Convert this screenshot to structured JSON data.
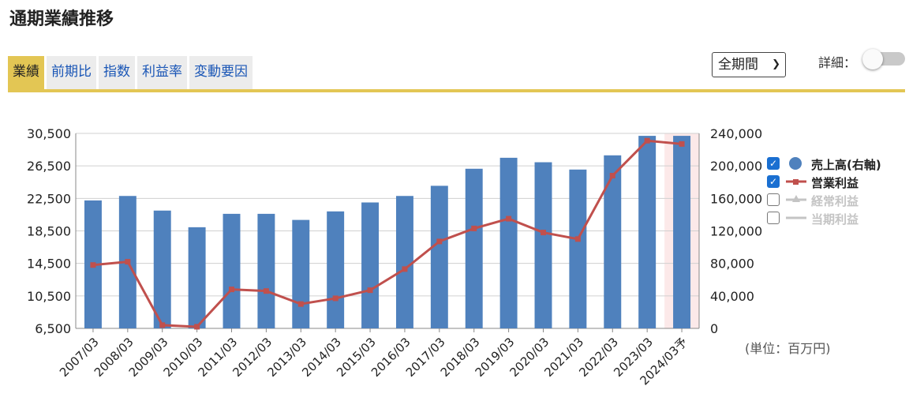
{
  "header": {
    "title": "通期業績推移"
  },
  "tabs": [
    {
      "label": "業績",
      "active": true
    },
    {
      "label": "前期比",
      "active": false
    },
    {
      "label": "指数",
      "active": false
    },
    {
      "label": "利益率",
      "active": false
    },
    {
      "label": "変動要因",
      "active": false
    }
  ],
  "controls": {
    "period_select": "全期間",
    "detail_label": "詳細：",
    "detail_toggle_on": false
  },
  "legend": [
    {
      "label": "売上高(右軸)",
      "checked": true
    },
    {
      "label": "営業利益",
      "checked": true
    },
    {
      "label": "経常利益",
      "checked": false
    },
    {
      "label": "当期利益",
      "checked": false
    }
  ],
  "unit_label": "(単位：百万円)",
  "colors": {
    "bar": "#4f81bd",
    "line": "#c0504d",
    "accent": "#e3c654",
    "link": "#1a56b6",
    "forecast_band": "#fce9e9"
  },
  "chart_data": {
    "type": "bar+line",
    "categories": [
      "2007/03",
      "2008/03",
      "2009/03",
      "2010/03",
      "2011/03",
      "2012/03",
      "2013/03",
      "2014/03",
      "2015/03",
      "2016/03",
      "2017/03",
      "2018/03",
      "2019/03",
      "2020/03",
      "2021/03",
      "2022/03",
      "2023/03",
      "2024/03予"
    ],
    "series": [
      {
        "name": "売上高(右軸)",
        "type": "bar",
        "axis": "right",
        "values": [
          157500,
          163000,
          145000,
          124500,
          141000,
          141000,
          133500,
          144000,
          155000,
          163000,
          175500,
          196500,
          210000,
          204500,
          195500,
          213000,
          237000,
          237000
        ]
      },
      {
        "name": "営業利益",
        "type": "line",
        "axis": "left",
        "values": [
          14300,
          14700,
          6900,
          6700,
          11300,
          11100,
          9500,
          10200,
          11200,
          13800,
          17200,
          18800,
          20000,
          18300,
          17500,
          25300,
          29600,
          29200
        ]
      }
    ],
    "left_axis": {
      "ylim": [
        6500,
        30500
      ],
      "ticks": [
        6500,
        10500,
        14500,
        18500,
        22500,
        26500,
        30500
      ],
      "tick_labels": [
        "6,500",
        "10,500",
        "14,500",
        "18,500",
        "22,500",
        "26,500",
        "30,500"
      ]
    },
    "right_axis": {
      "ylim": [
        0,
        240000
      ],
      "ticks": [
        0,
        40000,
        80000,
        120000,
        160000,
        200000,
        240000
      ],
      "tick_labels": [
        "0",
        "40,000",
        "80,000",
        "120,000",
        "160,000",
        "200,000",
        "240,000"
      ]
    },
    "grid": true,
    "forecast_index": 17,
    "legend_position": "right"
  }
}
